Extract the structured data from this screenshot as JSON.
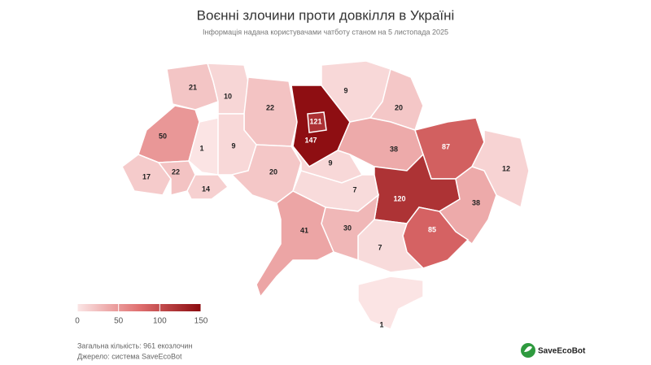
{
  "chart_data": {
    "type": "choropleth",
    "title": "Воєнні злочини проти довкілля в Україні",
    "subtitle": "Інформація надана користувачами чатботу станом на 5 листопада 2025",
    "values": [
      21,
      10,
      22,
      147,
      121,
      9,
      20,
      50,
      1,
      9,
      38,
      87,
      12,
      17,
      22,
      14,
      20,
      9,
      7,
      120,
      38,
      85,
      7,
      30,
      41,
      1
    ],
    "colors": [
      "#fbe6e6",
      "#e07070",
      "#8b0a0e"
    ],
    "color_range": [
      0,
      150
    ],
    "color_ticks": [
      0,
      50,
      100,
      150
    ],
    "footer": [
      "Загальна кількість: 961 екозлочин",
      "Джерело: система SaveEcoBot"
    ],
    "logo": "SaveEcoBot"
  }
}
